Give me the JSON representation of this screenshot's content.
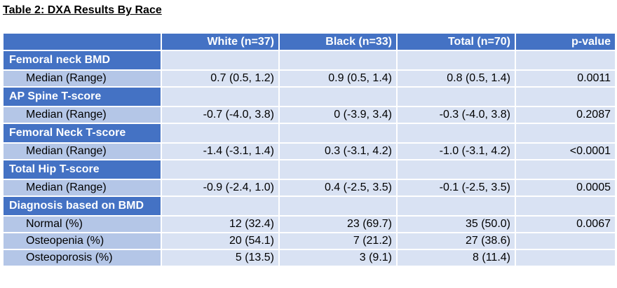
{
  "title": "Table 2: DXA Results By Race",
  "table": {
    "header": [
      "White (n=37)",
      "Black (n=33)",
      "Total (n=70)",
      "p-value"
    ],
    "rows": [
      {
        "label": "Femoral neck BMD"
      },
      {
        "cells": [
          "Median (Range)",
          "0.7 (0.5, 1.2)",
          "0.9 (0.5, 1.4)",
          "0.8 (0.5, 1.4)",
          "0.0011"
        ]
      },
      {
        "label": "AP Spine T-score"
      },
      {
        "cells": [
          "Median (Range)",
          "-0.7 (-4.0, 3.8)",
          "0 (-3.9, 3.4)",
          "-0.3 (-4.0, 3.8)",
          "0.2087"
        ]
      },
      {
        "label": "Femoral Neck T-score"
      },
      {
        "cells": [
          "Median (Range)",
          "-1.4 (-3.1, 1.4)",
          "0.3 (-3.1, 4.2)",
          "-1.0 (-3.1, 4.2)",
          "<0.0001"
        ]
      },
      {
        "label": "Total Hip T-score"
      },
      {
        "cells": [
          "Median (Range)",
          "-0.9 (-2.4, 1.0)",
          "0.4 (-2.5, 3.5)",
          "-0.1 (-2.5, 3.5)",
          "0.0005"
        ]
      },
      {
        "label": "Diagnosis based on BMD"
      },
      {
        "cells": [
          "Normal (%)",
          "12 (32.4)",
          "23 (69.7)",
          "35 (50.0)",
          "0.0067"
        ]
      },
      {
        "cells": [
          "Osteopenia (%)",
          "20 (54.1)",
          "7 (21.2)",
          "27 (38.6)"
        ]
      },
      {
        "cells": [
          "Osteoporosis (%)",
          "5 (13.5)",
          "3 (9.1)",
          "8 (11.4)"
        ]
      }
    ]
  }
}
